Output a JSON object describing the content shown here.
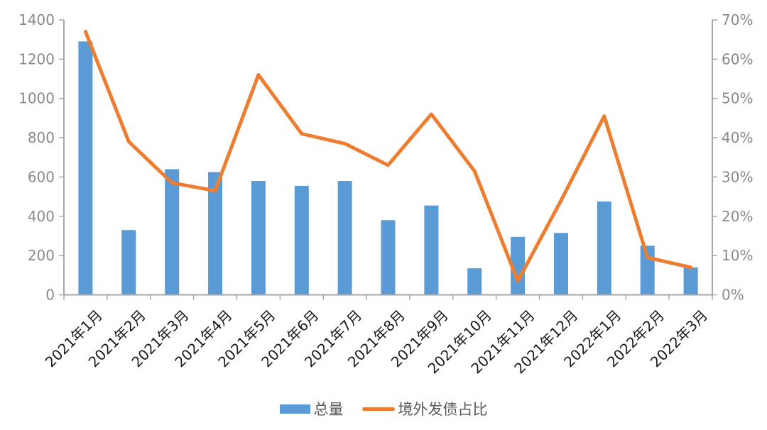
{
  "chart_data": {
    "type": "bar+line",
    "categories": [
      "2021年1月",
      "2021年2月",
      "2021年3月",
      "2021年4月",
      "2021年5月",
      "2021年6月",
      "2021年7月",
      "2021年8月",
      "2021年9月",
      "2021年10月",
      "2021年11月",
      "2021年12月",
      "2022年1月",
      "2022年2月",
      "2022年3月"
    ],
    "series": [
      {
        "name": "总量",
        "type": "bar",
        "axis": "left",
        "values": [
          1290,
          330,
          640,
          625,
          580,
          555,
          580,
          380,
          455,
          135,
          295,
          315,
          475,
          250,
          140
        ]
      },
      {
        "name": "境外发债占比",
        "type": "line",
        "axis": "right",
        "unit": "%",
        "values": [
          67,
          39,
          28.5,
          26.5,
          56,
          41,
          38.5,
          33,
          46,
          31.5,
          3.5,
          24,
          45.5,
          9.5,
          7
        ]
      }
    ],
    "left_axis": {
      "min": 0,
      "max": 1400,
      "step": 200,
      "tick_labels": [
        "1400",
        "1200",
        "1000",
        "800",
        "600",
        "400",
        "200",
        "0"
      ]
    },
    "right_axis": {
      "min": 0,
      "max": 70,
      "step": 10,
      "tick_labels": [
        "70%",
        "60%",
        "50%",
        "40%",
        "30%",
        "20%",
        "10%",
        "0%"
      ]
    },
    "grid": false,
    "title": "",
    "legend_position": "bottom"
  },
  "legend": {
    "bar_label": "总量",
    "line_label": "境外发债占比"
  },
  "colors": {
    "bar": "#5B9BD5",
    "line": "#ED7D31",
    "axis": "#A6A6A6",
    "tick_text": "#8A8A8A",
    "category_text": "#1A1A1A",
    "legend_text": "#595959",
    "background": "#FFFFFF"
  }
}
